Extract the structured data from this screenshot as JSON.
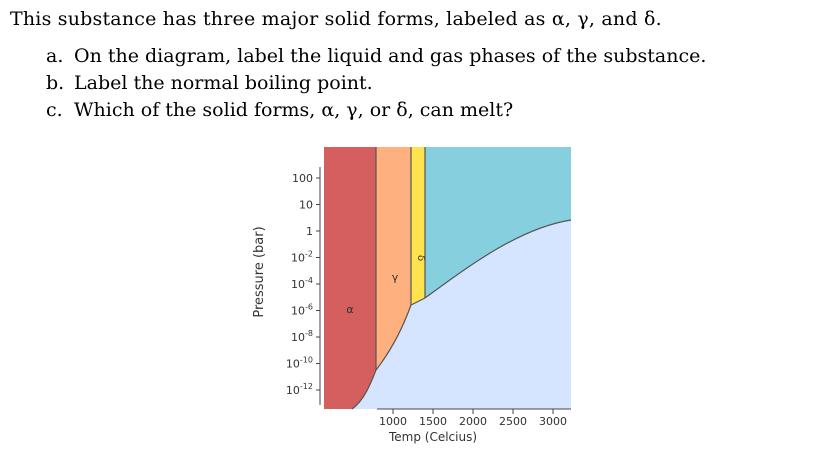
{
  "question": {
    "intro": "This substance has three major solid forms, labeled as α, γ, and δ.",
    "items": [
      {
        "letter": "a.",
        "text": "On the diagram, label the liquid and gas phases of the substance."
      },
      {
        "letter": "b.",
        "text": "Label the normal boiling point."
      },
      {
        "letter": "c.",
        "text": "Which of the solid forms, α, γ, or δ, can melt?"
      }
    ]
  },
  "diagram": {
    "y_axis_label": "Pressure (bar)",
    "x_axis_label": "Temp (Celcius)",
    "y_ticks": [
      {
        "base": "100",
        "exp": ""
      },
      {
        "base": "10",
        "exp": ""
      },
      {
        "base": "1",
        "exp": ""
      },
      {
        "base": "10",
        "exp": "-2"
      },
      {
        "base": "10",
        "exp": "-4"
      },
      {
        "base": "10",
        "exp": "-6"
      },
      {
        "base": "10",
        "exp": "-8"
      },
      {
        "base": "10",
        "exp": "-10"
      },
      {
        "base": "10",
        "exp": "-12"
      }
    ],
    "x_ticks": [
      "1000",
      "1500",
      "2000",
      "2500",
      "3000"
    ],
    "regions": {
      "alpha": {
        "label": "α",
        "color": "#d55f5f"
      },
      "gamma": {
        "label": "γ",
        "color": "#ffb07f"
      },
      "delta": {
        "label": "δ",
        "color": "#ffe34d"
      },
      "upper_right": {
        "color": "#86cfdf"
      },
      "lower_right": {
        "color": "#d6e5ff"
      }
    }
  }
}
